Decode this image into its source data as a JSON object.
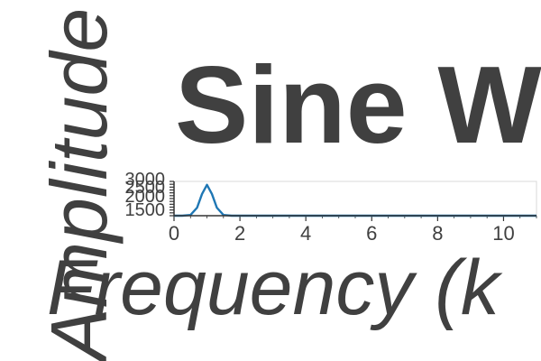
{
  "chart_data": {
    "type": "line",
    "title": "Sine W",
    "xlabel": "Frequency (k",
    "ylabel": "Amplitude",
    "xlim": [
      0,
      11
    ],
    "ylim": [
      0,
      3000
    ],
    "x_ticks": [
      "0",
      "2",
      "4",
      "6",
      "8",
      "10"
    ],
    "y_ticks": [
      "1500",
      "2000",
      "2500",
      "3000"
    ],
    "grid": false,
    "series": [
      {
        "x": [
          0,
          0.25,
          0.5,
          0.7,
          0.85,
          1.0,
          1.15,
          1.3,
          1.5,
          1.75,
          2,
          3,
          4,
          5,
          6,
          7,
          8,
          9,
          10,
          11
        ],
        "y": [
          0,
          0,
          60,
          700,
          1900,
          2700,
          1900,
          700,
          60,
          0,
          0,
          0,
          0,
          0,
          0,
          0,
          0,
          0,
          0,
          0
        ],
        "color": "#1f77b4"
      }
    ]
  }
}
